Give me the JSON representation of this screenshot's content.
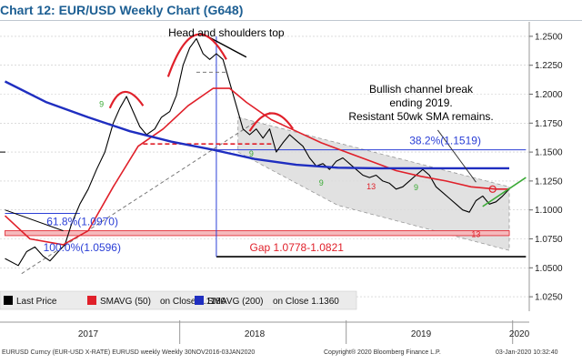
{
  "title": "Chart 12: EUR/USD Weekly Chart (G648)",
  "footer": {
    "left": "EURUSD Curncy (EUR-USD X-RATE) EURUSD weekly Weekly 30NOV2016-03JAN2020",
    "center": "Copyright® 2020 Bloomberg Finance L.P.",
    "right": "03-Jan-2020 10:32:40"
  },
  "colors": {
    "price": "#000000",
    "sma50": "#e0202a",
    "sma200": "#1f2ec0",
    "channel_fill": "#dcdcdc",
    "breakout_line": "#3aaa35",
    "annotation_blue": "#2b3fd6",
    "annotation_red": "#e0202a",
    "seq_green": "#3aaa35"
  },
  "chart_data": {
    "type": "line",
    "y_axis": {
      "ylim": [
        1.0125,
        1.2625
      ],
      "ticks": [
        "1.2500",
        "1.2250",
        "1.2000",
        "1.1750",
        "1.1500",
        "1.1250",
        "1.1000",
        "1.0750",
        "1.0500",
        "1.0250"
      ],
      "position": "right"
    },
    "x_axis": {
      "xlim": [
        2016.92,
        2020.1
      ],
      "labels": [
        {
          "x": 2017.45,
          "text": "2017"
        },
        {
          "x": 2018.45,
          "text": "2018"
        },
        {
          "x": 2019.45,
          "text": "2019"
        },
        {
          "x": 2020.04,
          "text": "2020"
        }
      ],
      "separators": [
        2018.0,
        2019.0,
        2020.0
      ]
    },
    "series": [
      {
        "name": "Last Price",
        "points": [
          [
            2016.95,
            1.058
          ],
          [
            2017.03,
            1.052
          ],
          [
            2017.08,
            1.064
          ],
          [
            2017.13,
            1.068
          ],
          [
            2017.18,
            1.06
          ],
          [
            2017.22,
            1.056
          ],
          [
            2017.27,
            1.064
          ],
          [
            2017.31,
            1.07
          ],
          [
            2017.35,
            1.088
          ],
          [
            2017.4,
            1.105
          ],
          [
            2017.45,
            1.118
          ],
          [
            2017.5,
            1.135
          ],
          [
            2017.55,
            1.15
          ],
          [
            2017.6,
            1.175
          ],
          [
            2017.64,
            1.188
          ],
          [
            2017.68,
            1.198
          ],
          [
            2017.72,
            1.185
          ],
          [
            2017.76,
            1.172
          ],
          [
            2017.8,
            1.165
          ],
          [
            2017.85,
            1.17
          ],
          [
            2017.89,
            1.18
          ],
          [
            2017.94,
            1.185
          ],
          [
            2017.98,
            1.199
          ],
          [
            2018.02,
            1.225
          ],
          [
            2018.06,
            1.24
          ],
          [
            2018.1,
            1.248
          ],
          [
            2018.14,
            1.235
          ],
          [
            2018.18,
            1.23
          ],
          [
            2018.22,
            1.235
          ],
          [
            2018.26,
            1.23
          ],
          [
            2018.3,
            1.21
          ],
          [
            2018.34,
            1.19
          ],
          [
            2018.38,
            1.17
          ],
          [
            2018.42,
            1.165
          ],
          [
            2018.46,
            1.17
          ],
          [
            2018.5,
            1.162
          ],
          [
            2018.54,
            1.17
          ],
          [
            2018.58,
            1.15
          ],
          [
            2018.62,
            1.158
          ],
          [
            2018.66,
            1.165
          ],
          [
            2018.7,
            1.16
          ],
          [
            2018.74,
            1.155
          ],
          [
            2018.78,
            1.145
          ],
          [
            2018.82,
            1.138
          ],
          [
            2018.86,
            1.14
          ],
          [
            2018.9,
            1.135
          ],
          [
            2018.94,
            1.142
          ],
          [
            2018.98,
            1.145
          ],
          [
            2019.02,
            1.14
          ],
          [
            2019.06,
            1.135
          ],
          [
            2019.1,
            1.13
          ],
          [
            2019.14,
            1.128
          ],
          [
            2019.18,
            1.13
          ],
          [
            2019.22,
            1.125
          ],
          [
            2019.26,
            1.123
          ],
          [
            2019.3,
            1.118
          ],
          [
            2019.34,
            1.12
          ],
          [
            2019.38,
            1.125
          ],
          [
            2019.42,
            1.13
          ],
          [
            2019.46,
            1.135
          ],
          [
            2019.5,
            1.13
          ],
          [
            2019.54,
            1.12
          ],
          [
            2019.58,
            1.115
          ],
          [
            2019.62,
            1.11
          ],
          [
            2019.66,
            1.105
          ],
          [
            2019.7,
            1.1
          ],
          [
            2019.74,
            1.098
          ],
          [
            2019.78,
            1.108
          ],
          [
            2019.82,
            1.112
          ],
          [
            2019.86,
            1.105
          ],
          [
            2019.9,
            1.107
          ],
          [
            2019.94,
            1.112
          ],
          [
            2019.98,
            1.118
          ]
        ]
      },
      {
        "name": "SMAVG (50)",
        "points": [
          [
            2016.95,
            1.095
          ],
          [
            2017.1,
            1.075
          ],
          [
            2017.3,
            1.07
          ],
          [
            2017.45,
            1.082
          ],
          [
            2017.6,
            1.12
          ],
          [
            2017.75,
            1.155
          ],
          [
            2017.9,
            1.17
          ],
          [
            2018.05,
            1.19
          ],
          [
            2018.2,
            1.205
          ],
          [
            2018.3,
            1.205
          ],
          [
            2018.4,
            1.193
          ],
          [
            2018.55,
            1.178
          ],
          [
            2018.7,
            1.168
          ],
          [
            2018.85,
            1.158
          ],
          [
            2019.0,
            1.15
          ],
          [
            2019.15,
            1.142
          ],
          [
            2019.3,
            1.134
          ],
          [
            2019.45,
            1.129
          ],
          [
            2019.6,
            1.125
          ],
          [
            2019.75,
            1.12
          ],
          [
            2019.9,
            1.118
          ],
          [
            2019.98,
            1.118
          ]
        ]
      },
      {
        "name": "SMAVG (200)",
        "points": [
          [
            2016.95,
            1.211
          ],
          [
            2017.2,
            1.193
          ],
          [
            2017.45,
            1.18
          ],
          [
            2017.7,
            1.168
          ],
          [
            2017.95,
            1.159
          ],
          [
            2018.2,
            1.152
          ],
          [
            2018.45,
            1.144
          ],
          [
            2018.7,
            1.139
          ],
          [
            2018.95,
            1.1365
          ],
          [
            2019.2,
            1.136
          ],
          [
            2019.45,
            1.136
          ],
          [
            2019.7,
            1.136
          ],
          [
            2019.98,
            1.136
          ]
        ]
      }
    ],
    "levels": [
      {
        "name": "38.2%",
        "value": 1.1519,
        "label": "38.2%(1.1519)"
      },
      {
        "name": "61.8%",
        "value": 1.097,
        "label": "61.8%(1.0970)"
      },
      {
        "name": "100.0%",
        "value": 1.0596,
        "label": "100.0%(1.0596)"
      }
    ],
    "gap": {
      "low": 1.0778,
      "high": 1.0821,
      "label": "Gap 1.0778-1.0821"
    },
    "annotations": [
      "Head and shoulders top",
      "Bullish channel break",
      "ending 2019.",
      "Resistant 50wk SMA remains."
    ],
    "sequential_counts": [
      {
        "text": "9",
        "x": 2017.53,
        "y": 1.189
      },
      {
        "text": "9",
        "x": 2018.43,
        "y": 1.146
      },
      {
        "text": "9",
        "x": 2018.85,
        "y": 1.121
      },
      {
        "text": "13",
        "x": 2019.15,
        "y": 1.118
      },
      {
        "text": "9",
        "x": 2019.42,
        "y": 1.117
      },
      {
        "text": "13",
        "x": 2019.78,
        "y": 1.0765
      }
    ],
    "legend": {
      "position": "bottom",
      "entries": [
        {
          "label": "Last Price",
          "value": ""
        },
        {
          "label": "SMAVG (50)",
          "value": "on Close 1.1180"
        },
        {
          "label": "SMAVG (200)",
          "value": "on Close 1.1360"
        }
      ]
    }
  }
}
